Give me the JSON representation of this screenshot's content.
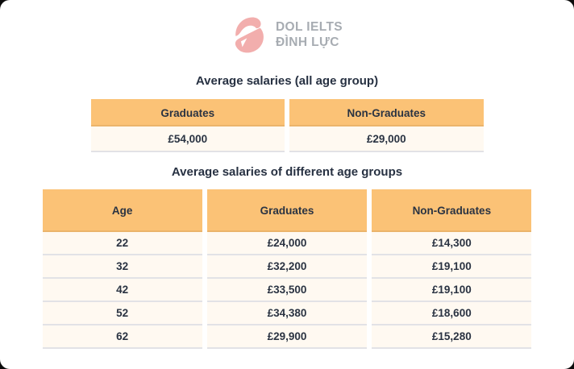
{
  "logo": {
    "line1": "DOL IELTS",
    "line2": "ĐÌNH LỰC",
    "icon": "dol-d-swoosh-icon",
    "icon_color": "#F2AEAD",
    "text_color": "#A7ACB2"
  },
  "colors": {
    "header_bg": "#FBC276",
    "row_bg": "#FFF9F1",
    "divider": "#E2E2E6",
    "text_dark": "#2A3342",
    "card_bg": "#FFFFFF"
  },
  "chart_data": [
    {
      "type": "table",
      "title": "Average salaries (all age group)",
      "columns": [
        "Graduates",
        "Non-Graduates"
      ],
      "rows": [
        [
          "£54,000",
          "£29,000"
        ]
      ]
    },
    {
      "type": "table",
      "title": "Average salaries of different age groups",
      "columns": [
        "Age",
        "Graduates",
        "Non-Graduates"
      ],
      "rows": [
        [
          "22",
          "£24,000",
          "£14,300"
        ],
        [
          "32",
          "£32,200",
          "£19,100"
        ],
        [
          "42",
          "£33,500",
          "£19,100"
        ],
        [
          "52",
          "£34,380",
          "£18,600"
        ],
        [
          "62",
          "£29,900",
          "£15,280"
        ]
      ]
    }
  ]
}
